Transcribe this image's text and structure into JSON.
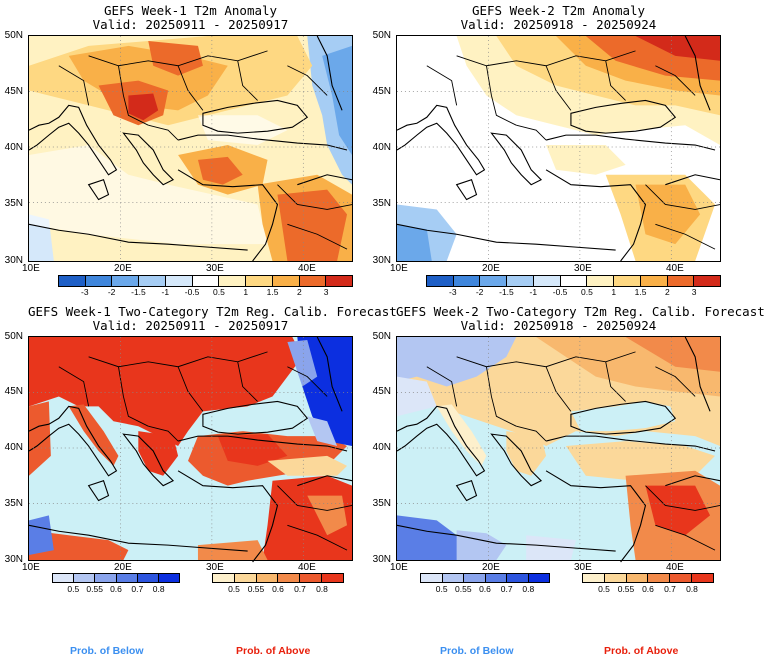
{
  "panels": [
    {
      "title": "GEFS Week-1 T2m Anomaly",
      "valid": "Valid: 20250911 - 20250917"
    },
    {
      "title": "GEFS Week-2 T2m Anomaly",
      "valid": "Valid: 20250918 - 20250924"
    },
    {
      "title": "GEFS Week-1 Two-Category T2m Reg. Calib. Forecast",
      "valid": "Valid: 20250911 - 20250917"
    },
    {
      "title": "GEFS Week-2 Two-Category T2m Reg. Calib. Forecast",
      "valid": "Valid: 20250918 - 20250924"
    }
  ],
  "lat_labels": [
    "50N",
    "45N",
    "40N",
    "35N",
    "30N"
  ],
  "lon_labels": [
    "10E",
    "20E",
    "30E",
    "40E"
  ],
  "anomaly_colorbar": {
    "labels": [
      "-3",
      "-2",
      "-1.5",
      "-1",
      "-0.5",
      "0.5",
      "1",
      "1.5",
      "2",
      "3"
    ],
    "colors": [
      "#1e5fc6",
      "#3f86dc",
      "#6ba8ea",
      "#a6cdf4",
      "#d5e8fa",
      "#ffffff",
      "#fff2c2",
      "#fed882",
      "#f9b048",
      "#ec6a2a",
      "#d32a1a"
    ]
  },
  "prob_below_colorbar": {
    "labels": [
      "0.5",
      "0.55",
      "0.6",
      "0.7",
      "0.8"
    ],
    "colors": [
      "#dce6f8",
      "#b3c6f2",
      "#8aa4ec",
      "#5a7ee6",
      "#2d55df",
      "#0c2fe0"
    ]
  },
  "prob_above_colorbar": {
    "labels": [
      "0.5",
      "0.55",
      "0.6",
      "0.7",
      "0.8"
    ],
    "colors": [
      "#fdf0cc",
      "#fbd89a",
      "#f8b86e",
      "#f28a4a",
      "#ec5a2e",
      "#e8361c"
    ]
  },
  "bottom_labels": {
    "below": "Prob. of Below",
    "above": "Prob. of Above",
    "below_color": "#3b8ff0",
    "above_color": "#e8200c"
  },
  "water_color": "#ccf0f6"
}
